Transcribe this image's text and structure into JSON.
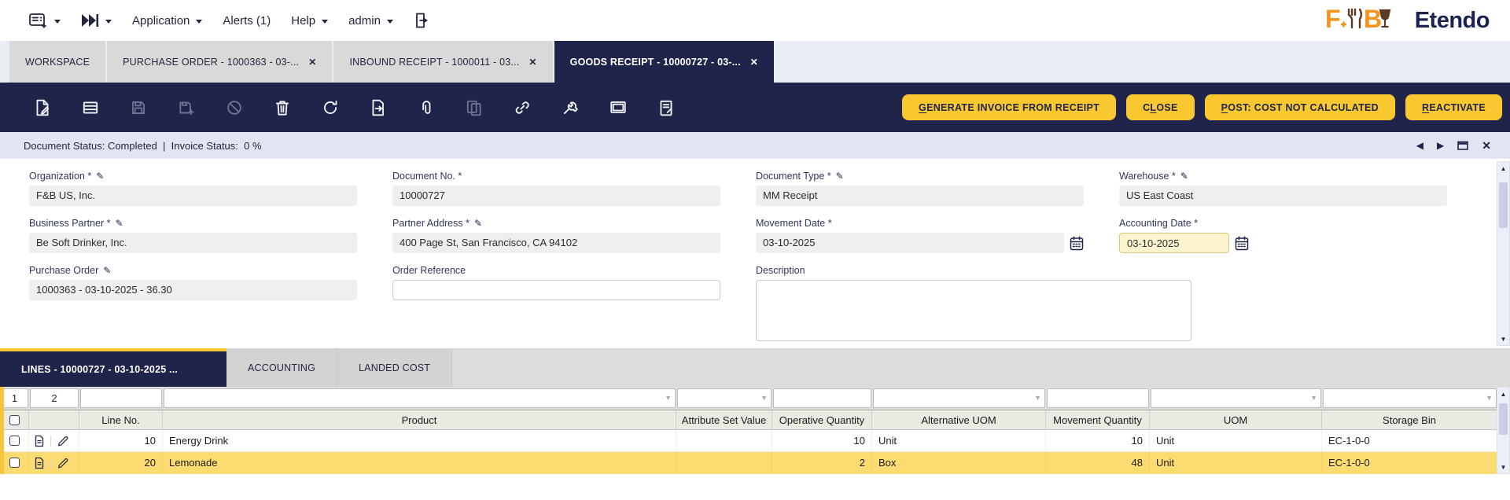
{
  "colors": {
    "navy": "#20244a",
    "accent_yellow": "#f9c72f",
    "selected_row_yellow": "#fcdb70",
    "status_bar_bg": "#e2e4f1",
    "brand_orange": "#f7941d",
    "brand_brown": "#5d3a26"
  },
  "menu_bar": {
    "items": [
      {
        "label": "Application",
        "caret": true
      },
      {
        "label": "Alerts (1)",
        "caret": false
      },
      {
        "label": "Help",
        "caret": true
      },
      {
        "label": "admin",
        "caret": true
      }
    ],
    "brand_text": "Etendo"
  },
  "window_tabs": [
    {
      "label": "WORKSPACE",
      "closable": false,
      "active": false
    },
    {
      "label": "PURCHASE ORDER - 1000363 - 03-...",
      "closable": true,
      "active": false
    },
    {
      "label": "INBOUND RECEIPT - 1000011 - 03...",
      "closable": true,
      "active": false
    },
    {
      "label": "GOODS RECEIPT - 10000727 - 03-...",
      "closable": true,
      "active": true
    }
  ],
  "toolbar": {
    "icons": [
      {
        "name": "new-record-icon",
        "enabled": true
      },
      {
        "name": "grid-view-icon",
        "enabled": true
      },
      {
        "name": "save-icon",
        "enabled": false
      },
      {
        "name": "save-and-new-icon",
        "enabled": false
      },
      {
        "name": "undo-icon",
        "enabled": false
      },
      {
        "name": "delete-icon",
        "enabled": true
      },
      {
        "name": "refresh-icon",
        "enabled": true
      },
      {
        "name": "export-icon",
        "enabled": true
      },
      {
        "name": "attachment-icon",
        "enabled": true
      },
      {
        "name": "clone-icon",
        "enabled": false
      },
      {
        "name": "link-icon",
        "enabled": true
      },
      {
        "name": "process-icon",
        "enabled": true
      },
      {
        "name": "new-window-icon",
        "enabled": true
      },
      {
        "name": "print-icon",
        "enabled": true
      }
    ],
    "buttons": [
      {
        "label": "GENERATE INVOICE FROM RECEIPT",
        "underline_index": 0
      },
      {
        "label": "CLOSE",
        "underline_index": 1
      },
      {
        "label": "POST: COST NOT CALCULATED",
        "underline_index": 0
      },
      {
        "label": "REACTIVATE",
        "underline_index": 0
      }
    ]
  },
  "status_bar": {
    "text": "Document Status: Completed  |  Invoice Status:  0 %"
  },
  "form": {
    "fields": [
      {
        "name": "organization-field",
        "label": "Organization *",
        "pen": true,
        "value": "F&B US, Inc.",
        "type": "readonly",
        "col": 1
      },
      {
        "name": "document-no-field",
        "label": "Document No. *",
        "pen": false,
        "value": "10000727",
        "type": "readonly",
        "col": 2
      },
      {
        "name": "document-type-field",
        "label": "Document Type *",
        "pen": true,
        "value": "MM Receipt",
        "type": "readonly",
        "col": 3
      },
      {
        "name": "warehouse-field",
        "label": "Warehouse *",
        "pen": true,
        "value": "US East Coast",
        "type": "readonly",
        "col": 4
      },
      {
        "name": "business-partner-field",
        "label": "Business Partner *",
        "pen": true,
        "value": "Be Soft Drinker, Inc.",
        "type": "readonly",
        "col": 1
      },
      {
        "name": "partner-address-field",
        "label": "Partner Address *",
        "pen": true,
        "value": "400 Page St, San Francisco, CA 94102",
        "type": "readonly",
        "col": 2
      },
      {
        "name": "movement-date-field",
        "label": "Movement Date *",
        "pen": false,
        "value": "03-10-2025",
        "type": "readonly-date",
        "col": 3
      },
      {
        "name": "accounting-date-field",
        "label": "Accounting Date *",
        "pen": false,
        "value": "03-10-2025",
        "type": "editable-date",
        "col": 4
      },
      {
        "name": "purchase-order-field",
        "label": "Purchase Order",
        "pen": true,
        "value": "1000363 - 03-10-2025 - 36.30",
        "type": "readonly",
        "col": 1
      },
      {
        "name": "order-reference-field",
        "label": "Order Reference",
        "pen": false,
        "value": "",
        "type": "text",
        "col": 2
      },
      {
        "name": "description-field",
        "label": "Description",
        "pen": false,
        "value": "",
        "type": "textarea",
        "col": 3
      }
    ]
  },
  "lines_tabs": [
    {
      "label": "LINES - 10000727 - 03-10-2025 ...",
      "active": true
    },
    {
      "label": "ACCOUNTING",
      "active": false
    },
    {
      "label": "LANDED COST",
      "active": false
    }
  ],
  "grid": {
    "filter_nums": [
      "1",
      "2"
    ],
    "columns": [
      {
        "label": "Line No.",
        "slug": "line-no",
        "align": "right",
        "combo": false
      },
      {
        "label": "Product",
        "slug": "product",
        "align": "left",
        "combo": true
      },
      {
        "label": "Attribute Set Value",
        "slug": "attribute-set-value",
        "align": "left",
        "combo": true
      },
      {
        "label": "Operative Quantity",
        "slug": "operative-quantity",
        "align": "right",
        "combo": false
      },
      {
        "label": "Alternative UOM",
        "slug": "alternative-uom",
        "align": "left",
        "combo": true
      },
      {
        "label": "Movement Quantity",
        "slug": "movement-quantity",
        "align": "right",
        "combo": false
      },
      {
        "label": "UOM",
        "slug": "uom",
        "align": "left",
        "combo": true
      },
      {
        "label": "Storage Bin",
        "slug": "storage-bin",
        "align": "left",
        "combo": true
      }
    ],
    "rows": [
      {
        "selected": false,
        "cells": [
          "10",
          "Energy Drink",
          "",
          "10",
          "Unit",
          "10",
          "Unit",
          "EC-1-0-0"
        ]
      },
      {
        "selected": true,
        "cells": [
          "20",
          "Lemonade",
          "",
          "2",
          "Box",
          "48",
          "Unit",
          "EC-1-0-0"
        ]
      }
    ]
  }
}
